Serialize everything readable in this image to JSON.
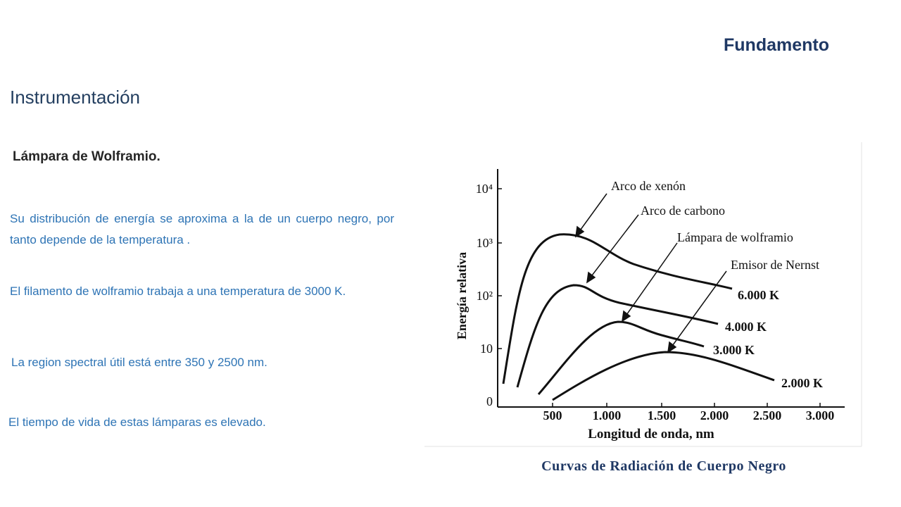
{
  "header": {
    "section": "Fundamento",
    "title": "Instrumentación"
  },
  "content": {
    "subtitle": "Lámpara de Wolframio.",
    "paragraphs": [
      "Su distribución de energía se aproxima a la de un cuerpo negro, por tanto depende de la temperatura .",
      "El filamento de wolframio trabaja a una temperatura de 3000 K.",
      "La region spectral útil está entre 350 y 2500 nm.",
      "El tiempo de vida de estas lámparas es elevado."
    ]
  },
  "figure": {
    "y_axis_label": "Energía relativa",
    "x_axis_label": "Longitud de onda, nm",
    "y_ticks": [
      "10⁴",
      "10³",
      "10²",
      "10",
      "0"
    ],
    "x_ticks": [
      "500",
      "1.000",
      "1.500",
      "2.000",
      "2.500",
      "3.000"
    ],
    "curve_labels": [
      "Arco de xenón",
      "Arco de carbono",
      "Lámpara de wolframio",
      "Emisor de Nernst"
    ],
    "temperatures": [
      "6.000 K",
      "4.000 K",
      "3.000 K",
      "2.000 K"
    ],
    "caption": "Curvas de Radiación de Cuerpo Negro"
  }
}
